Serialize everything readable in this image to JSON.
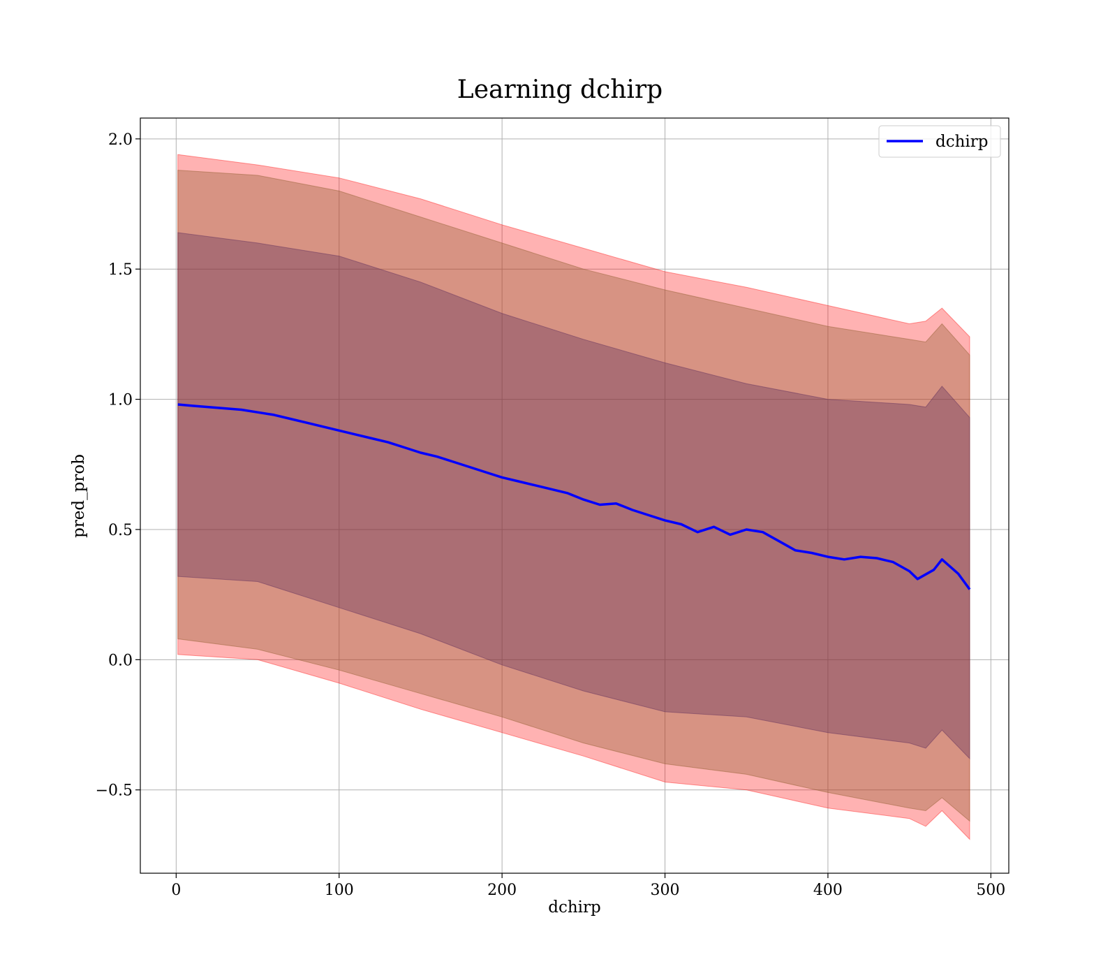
{
  "chart_data": {
    "type": "line",
    "title": "Learning dchirp",
    "xlabel": "dchirp",
    "ylabel": "pred_prob",
    "xlim": [
      -22,
      511
    ],
    "ylim": [
      -0.82,
      2.08
    ],
    "xticks": [
      0,
      100,
      200,
      300,
      400,
      500
    ],
    "xtick_labels": [
      "0",
      "100",
      "200",
      "300",
      "400",
      "500"
    ],
    "yticks": [
      -0.5,
      0.0,
      0.5,
      1.0,
      1.5,
      2.0
    ],
    "ytick_labels": [
      "−0.5",
      "0.0",
      "0.5",
      "1.0",
      "1.5",
      "2.0"
    ],
    "grid": true,
    "legend_position": "top-right",
    "series": [
      {
        "name": "dchirp",
        "color": "#0000ff",
        "x": [
          1,
          10,
          20,
          30,
          40,
          50,
          60,
          70,
          80,
          90,
          100,
          110,
          120,
          130,
          140,
          150,
          160,
          170,
          180,
          190,
          200,
          210,
          220,
          230,
          240,
          250,
          260,
          270,
          280,
          290,
          300,
          310,
          320,
          330,
          340,
          350,
          360,
          370,
          380,
          390,
          400,
          410,
          420,
          430,
          440,
          450,
          455,
          465,
          470,
          480,
          487
        ],
        "y": [
          0.98,
          0.975,
          0.97,
          0.965,
          0.96,
          0.95,
          0.94,
          0.925,
          0.91,
          0.895,
          0.88,
          0.865,
          0.85,
          0.835,
          0.815,
          0.795,
          0.78,
          0.76,
          0.74,
          0.72,
          0.7,
          0.685,
          0.67,
          0.655,
          0.64,
          0.615,
          0.595,
          0.6,
          0.575,
          0.555,
          0.535,
          0.52,
          0.49,
          0.51,
          0.48,
          0.5,
          0.49,
          0.455,
          0.42,
          0.41,
          0.395,
          0.385,
          0.395,
          0.39,
          0.375,
          0.34,
          0.31,
          0.345,
          0.385,
          0.33,
          0.27
        ]
      }
    ],
    "bands": [
      {
        "color": "#ff0000",
        "opacity": 0.3,
        "x": [
          1,
          50,
          100,
          150,
          200,
          250,
          300,
          350,
          400,
          450,
          460,
          470,
          487
        ],
        "upper": [
          1.94,
          1.9,
          1.85,
          1.77,
          1.67,
          1.58,
          1.49,
          1.43,
          1.36,
          1.29,
          1.3,
          1.35,
          1.24
        ],
        "lower": [
          0.02,
          0.0,
          -0.09,
          -0.19,
          -0.28,
          -0.37,
          -0.47,
          -0.5,
          -0.57,
          -0.61,
          -0.64,
          -0.58,
          -0.69
        ]
      },
      {
        "color": "#8b5a2b",
        "opacity": 0.35,
        "x": [
          1,
          50,
          100,
          150,
          200,
          250,
          300,
          350,
          400,
          450,
          460,
          470,
          487
        ],
        "upper": [
          1.88,
          1.86,
          1.8,
          1.7,
          1.6,
          1.5,
          1.42,
          1.35,
          1.28,
          1.23,
          1.22,
          1.29,
          1.17
        ],
        "lower": [
          0.08,
          0.04,
          -0.04,
          -0.13,
          -0.22,
          -0.32,
          -0.4,
          -0.44,
          -0.51,
          -0.57,
          -0.58,
          -0.53,
          -0.62
        ]
      },
      {
        "color": "#5a2a5a",
        "opacity": 0.35,
        "x": [
          1,
          50,
          100,
          150,
          200,
          250,
          300,
          350,
          400,
          450,
          460,
          470,
          487
        ],
        "upper": [
          1.64,
          1.6,
          1.55,
          1.45,
          1.33,
          1.23,
          1.14,
          1.06,
          1.0,
          0.98,
          0.97,
          1.05,
          0.93
        ],
        "lower": [
          0.32,
          0.3,
          0.2,
          0.1,
          -0.02,
          -0.12,
          -0.2,
          -0.22,
          -0.28,
          -0.32,
          -0.34,
          -0.27,
          -0.38
        ]
      }
    ]
  }
}
